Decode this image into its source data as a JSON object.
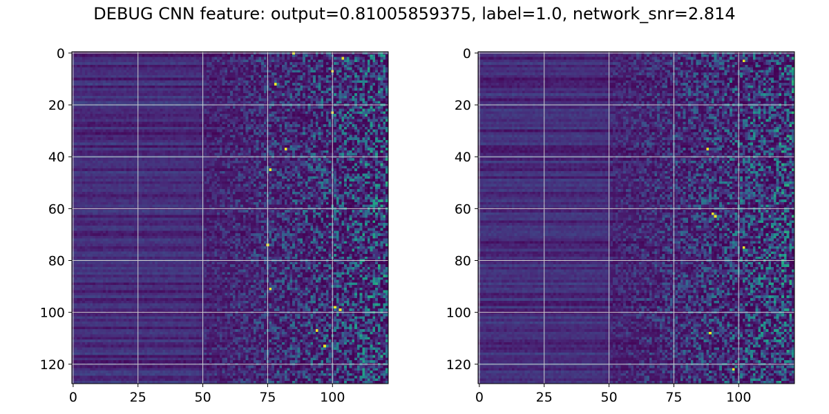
{
  "figure": {
    "title": "DEBUG CNN feature: output=0.81005859375, label=1.0, network_snr=2.814"
  },
  "chart_data": [
    {
      "type": "heatmap",
      "colormap": "viridis",
      "rows": 128,
      "cols": 122,
      "xlim": [
        -0.5,
        121.5
      ],
      "ylim": [
        127.5,
        -0.5
      ],
      "xticks": [
        0,
        25,
        50,
        75,
        100
      ],
      "yticks": [
        0,
        20,
        40,
        60,
        80,
        100,
        120
      ],
      "grid": true,
      "xlabel": "",
      "ylabel": "",
      "pattern": "low-intensity horizontal bands on left (cols 0-50), increasingly noisy speckled high values towards right (cols 60-121)",
      "bright_points": [
        [
          85,
          0
        ],
        [
          104,
          2
        ],
        [
          100,
          7
        ],
        [
          78,
          12
        ],
        [
          100,
          23
        ],
        [
          82,
          37
        ],
        [
          76,
          45
        ],
        [
          75,
          74
        ],
        [
          76,
          91
        ],
        [
          101,
          98
        ],
        [
          103,
          99
        ],
        [
          94,
          107
        ],
        [
          97,
          113
        ]
      ]
    },
    {
      "type": "heatmap",
      "colormap": "viridis",
      "rows": 128,
      "cols": 122,
      "xlim": [
        -0.5,
        121.5
      ],
      "ylim": [
        127.5,
        -0.5
      ],
      "xticks": [
        0,
        25,
        50,
        75,
        100
      ],
      "yticks": [
        0,
        20,
        40,
        60,
        80,
        100,
        120
      ],
      "grid": true,
      "xlabel": "",
      "ylabel": "",
      "pattern": "low-intensity horizontal bands on left (cols 0-50), increasingly noisy speckled high values towards right (cols 60-121)",
      "bright_points": [
        [
          102,
          3
        ],
        [
          88,
          37
        ],
        [
          90,
          62
        ],
        [
          91,
          63
        ],
        [
          102,
          75
        ],
        [
          89,
          108
        ],
        [
          98,
          122
        ]
      ]
    }
  ]
}
